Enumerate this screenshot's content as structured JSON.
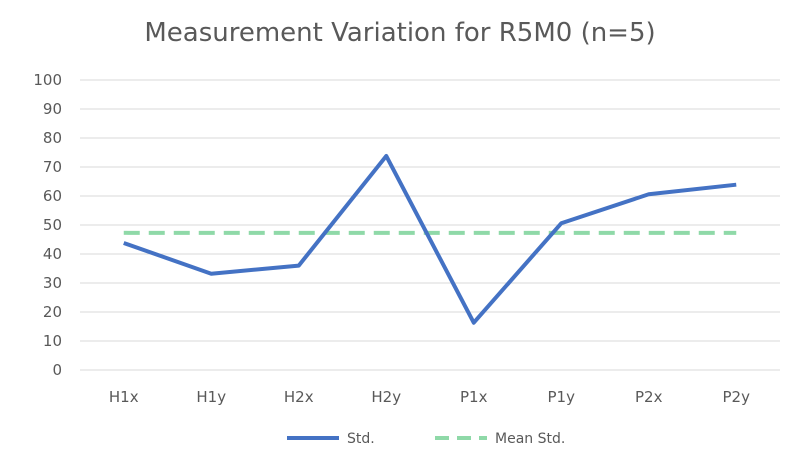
{
  "chart_data": {
    "type": "line",
    "title": "Measurement Variation for R5M0 (n=5)",
    "xlabel": "",
    "ylabel": "",
    "categories": [
      "H1x",
      "H1y",
      "H2x",
      "H2y",
      "P1x",
      "P1y",
      "P2x",
      "P2y"
    ],
    "ylim": [
      0,
      100
    ],
    "yticks": [
      0,
      10,
      20,
      30,
      40,
      50,
      60,
      70,
      80,
      90,
      100
    ],
    "grid": true,
    "legend_position": "bottom",
    "series": [
      {
        "name": "Std.",
        "values": [
          43.8,
          33.2,
          36.0,
          73.8,
          16.3,
          50.6,
          60.6,
          63.9
        ],
        "color": "#4472c4",
        "style": "solid"
      },
      {
        "name": "Mean Std.",
        "values": [
          47.3,
          47.3,
          47.3,
          47.3,
          47.3,
          47.3,
          47.3,
          47.3
        ],
        "color": "#8fd9a8",
        "style": "dashed"
      }
    ]
  }
}
